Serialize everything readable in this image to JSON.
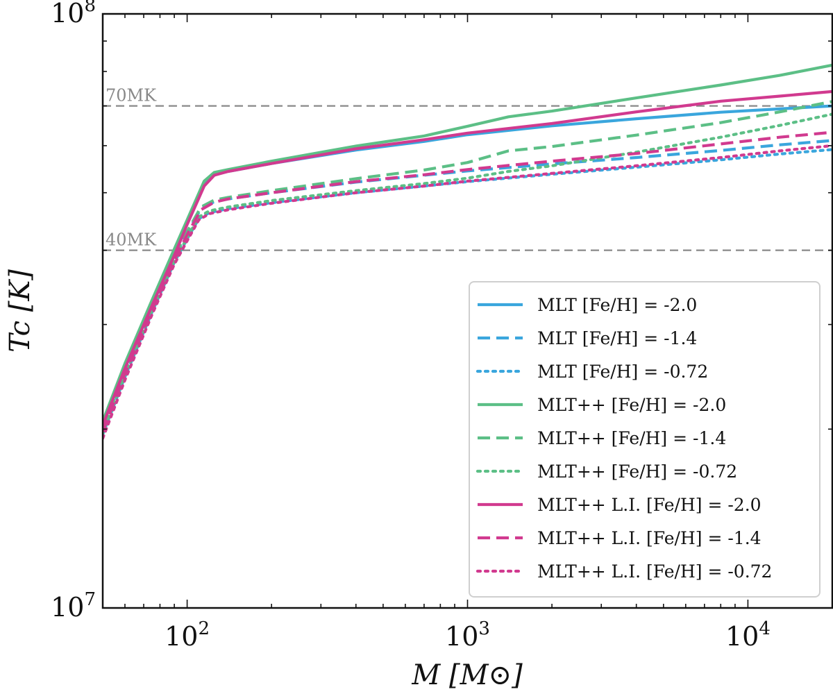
{
  "chart_data": {
    "type": "line",
    "title": "",
    "xlabel": "M [M⊙]",
    "ylabel": "Tc [K]",
    "xscale": "log",
    "yscale": "log",
    "xlim": [
      50,
      20000
    ],
    "ylim": [
      10000000,
      100000000
    ],
    "x_ticks": [
      {
        "value": 100,
        "base": "10",
        "exp": "2"
      },
      {
        "value": 1000,
        "base": "10",
        "exp": "3"
      },
      {
        "value": 10000,
        "base": "10",
        "exp": "4"
      }
    ],
    "y_ticks": [
      {
        "value": 10000000,
        "base": "10",
        "exp": "7"
      },
      {
        "value": 100000000,
        "base": "10",
        "exp": "8"
      }
    ],
    "reference_lines": [
      {
        "y": 70000000,
        "label": "70MK",
        "color": "#888888"
      },
      {
        "y": 40000000,
        "label": "40MK",
        "color": "#888888"
      }
    ],
    "legend_position": "lower-right",
    "series": [
      {
        "name": "MLT [Fe/H] = -2.0",
        "color": "#3aa6dd",
        "style": "solid",
        "x": [
          50,
          60,
          75,
          90,
          100,
          115,
          125,
          140,
          200,
          400,
          700,
          1000,
          2000,
          4000,
          8000,
          13000,
          20000
        ],
        "y": [
          20500000,
          25500000,
          32500000,
          39500000,
          44500000,
          51500000,
          53600000,
          54300000,
          56000000,
          59000000,
          61000000,
          62600000,
          64800000,
          66600000,
          68300000,
          69200000,
          70000000
        ]
      },
      {
        "name": "MLT [Fe/H] = -1.4",
        "color": "#3aa6dd",
        "style": "dashed",
        "x": [
          50,
          60,
          75,
          90,
          100,
          112,
          125,
          140,
          200,
          400,
          700,
          1000,
          2000,
          4000,
          8000,
          13000,
          20000
        ],
        "y": [
          20000000,
          25000000,
          32000000,
          38800000,
          42800000,
          47000000,
          48300000,
          48800000,
          50000000,
          52100000,
          53500000,
          54400000,
          55900000,
          57300000,
          58900000,
          60200000,
          61200000
        ]
      },
      {
        "name": "MLT [Fe/H] = -0.72",
        "color": "#3aa6dd",
        "style": "dotted",
        "x": [
          50,
          60,
          75,
          90,
          100,
          110,
          120,
          140,
          200,
          400,
          700,
          1000,
          2000,
          4000,
          8000,
          13000,
          20000
        ],
        "y": [
          19600000,
          24500000,
          31500000,
          38200000,
          41800000,
          45200000,
          46300000,
          47000000,
          48100000,
          50000000,
          51300000,
          52200000,
          53700000,
          55200000,
          56800000,
          58100000,
          59100000
        ]
      },
      {
        "name": "MLT++ [Fe/H] = -2.0",
        "color": "#5cbf86",
        "style": "solid",
        "x": [
          50,
          60,
          75,
          90,
          100,
          115,
          125,
          140,
          200,
          400,
          700,
          1000,
          1400,
          2000,
          4000,
          8000,
          13000,
          20000
        ],
        "y": [
          20600000,
          25800000,
          33000000,
          40200000,
          45000000,
          52300000,
          54100000,
          54700000,
          56500000,
          59900000,
          62300000,
          64700000,
          67100000,
          68600000,
          72200000,
          75900000,
          78800000,
          82000000
        ]
      },
      {
        "name": "MLT++ [Fe/H] = -1.4",
        "color": "#5cbf86",
        "style": "dashed",
        "x": [
          50,
          60,
          75,
          90,
          100,
          112,
          125,
          140,
          200,
          400,
          700,
          1000,
          1400,
          2000,
          4000,
          8000,
          13000,
          20000
        ],
        "y": [
          20100000,
          25100000,
          32200000,
          39000000,
          43000000,
          47300000,
          48600000,
          49100000,
          50400000,
          52800000,
          54600000,
          56200000,
          58800000,
          59800000,
          62500000,
          65600000,
          68400000,
          71200000
        ]
      },
      {
        "name": "MLT++ [Fe/H] = -0.72",
        "color": "#5cbf86",
        "style": "dotted",
        "x": [
          50,
          60,
          75,
          90,
          100,
          110,
          120,
          140,
          200,
          400,
          700,
          1000,
          1400,
          2000,
          4000,
          8000,
          13000,
          20000
        ],
        "y": [
          19700000,
          24700000,
          31700000,
          38400000,
          42000000,
          45500000,
          46600000,
          47300000,
          48500000,
          50400000,
          51800000,
          52900000,
          54300000,
          55500000,
          58500000,
          62000000,
          64900000,
          67800000
        ]
      },
      {
        "name": "MLT++ L.I. [Fe/H] = -2.0",
        "color": "#d13a8f",
        "style": "solid",
        "x": [
          50,
          60,
          75,
          90,
          100,
          115,
          125,
          140,
          200,
          400,
          700,
          1000,
          2000,
          4000,
          8000,
          13000,
          20000
        ],
        "y": [
          20300000,
          25300000,
          32300000,
          39200000,
          44200000,
          51300000,
          53500000,
          54300000,
          56000000,
          59300000,
          61400000,
          63000000,
          65400000,
          68400000,
          71300000,
          72700000,
          74000000
        ]
      },
      {
        "name": "MLT++ L.I. [Fe/H] = -1.4",
        "color": "#d13a8f",
        "style": "dashed",
        "x": [
          50,
          60,
          75,
          90,
          100,
          112,
          125,
          140,
          200,
          400,
          700,
          1000,
          2000,
          4000,
          8000,
          13000,
          20000
        ],
        "y": [
          19800000,
          24800000,
          31800000,
          38500000,
          42500000,
          46800000,
          48200000,
          48800000,
          50000000,
          52200000,
          53600000,
          54700000,
          56500000,
          58200000,
          60400000,
          62000000,
          63200000
        ]
      },
      {
        "name": "MLT++ L.I. [Fe/H] = -0.72",
        "color": "#d13a8f",
        "style": "dotted",
        "x": [
          50,
          60,
          75,
          90,
          100,
          110,
          120,
          140,
          200,
          400,
          700,
          1000,
          2000,
          4000,
          8000,
          13000,
          20000
        ],
        "y": [
          19300000,
          24200000,
          31200000,
          37900000,
          41500000,
          45000000,
          46100000,
          46800000,
          48000000,
          50000000,
          51300000,
          52300000,
          53900000,
          55500000,
          57300000,
          58800000,
          60000000
        ]
      }
    ]
  }
}
